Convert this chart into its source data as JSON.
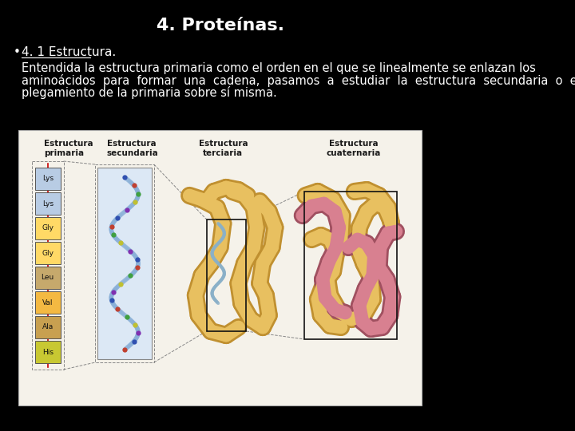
{
  "background_color": "#000000",
  "title": "4. Proteínas.",
  "title_color": "#ffffff",
  "title_fontsize": 16,
  "bullet_char": "•",
  "subtitle": "4. 1 Estructura.",
  "subtitle_color": "#ffffff",
  "subtitle_fontsize": 11,
  "body_line1": "Entendida la estructura primaria como el orden en el que se linealmente se enlazan los",
  "body_line2": "aminoácidos  para  formar  una  cadena,  pasamos  a  estudiar  la  estructura  secundaria  o  el",
  "body_line3": "plegamiento de la primaria sobre sí misma.",
  "body_color": "#ffffff",
  "body_fontsize": 10.5,
  "image_box_bg": "#f5f2ea",
  "image_box_edge": "#aaaaaa",
  "label_color": "#1a1a1a",
  "label_fontsize": 7.5,
  "aa_labels": [
    "Lys",
    "Lys",
    "Gly",
    "Gly",
    "Leu",
    "Val",
    "Ala",
    "His"
  ],
  "aa_colors": [
    "#b8cce4",
    "#b8cce4",
    "#ffd966",
    "#ffd966",
    "#c6a96c",
    "#f4b942",
    "#c8a050",
    "#c8c832"
  ]
}
